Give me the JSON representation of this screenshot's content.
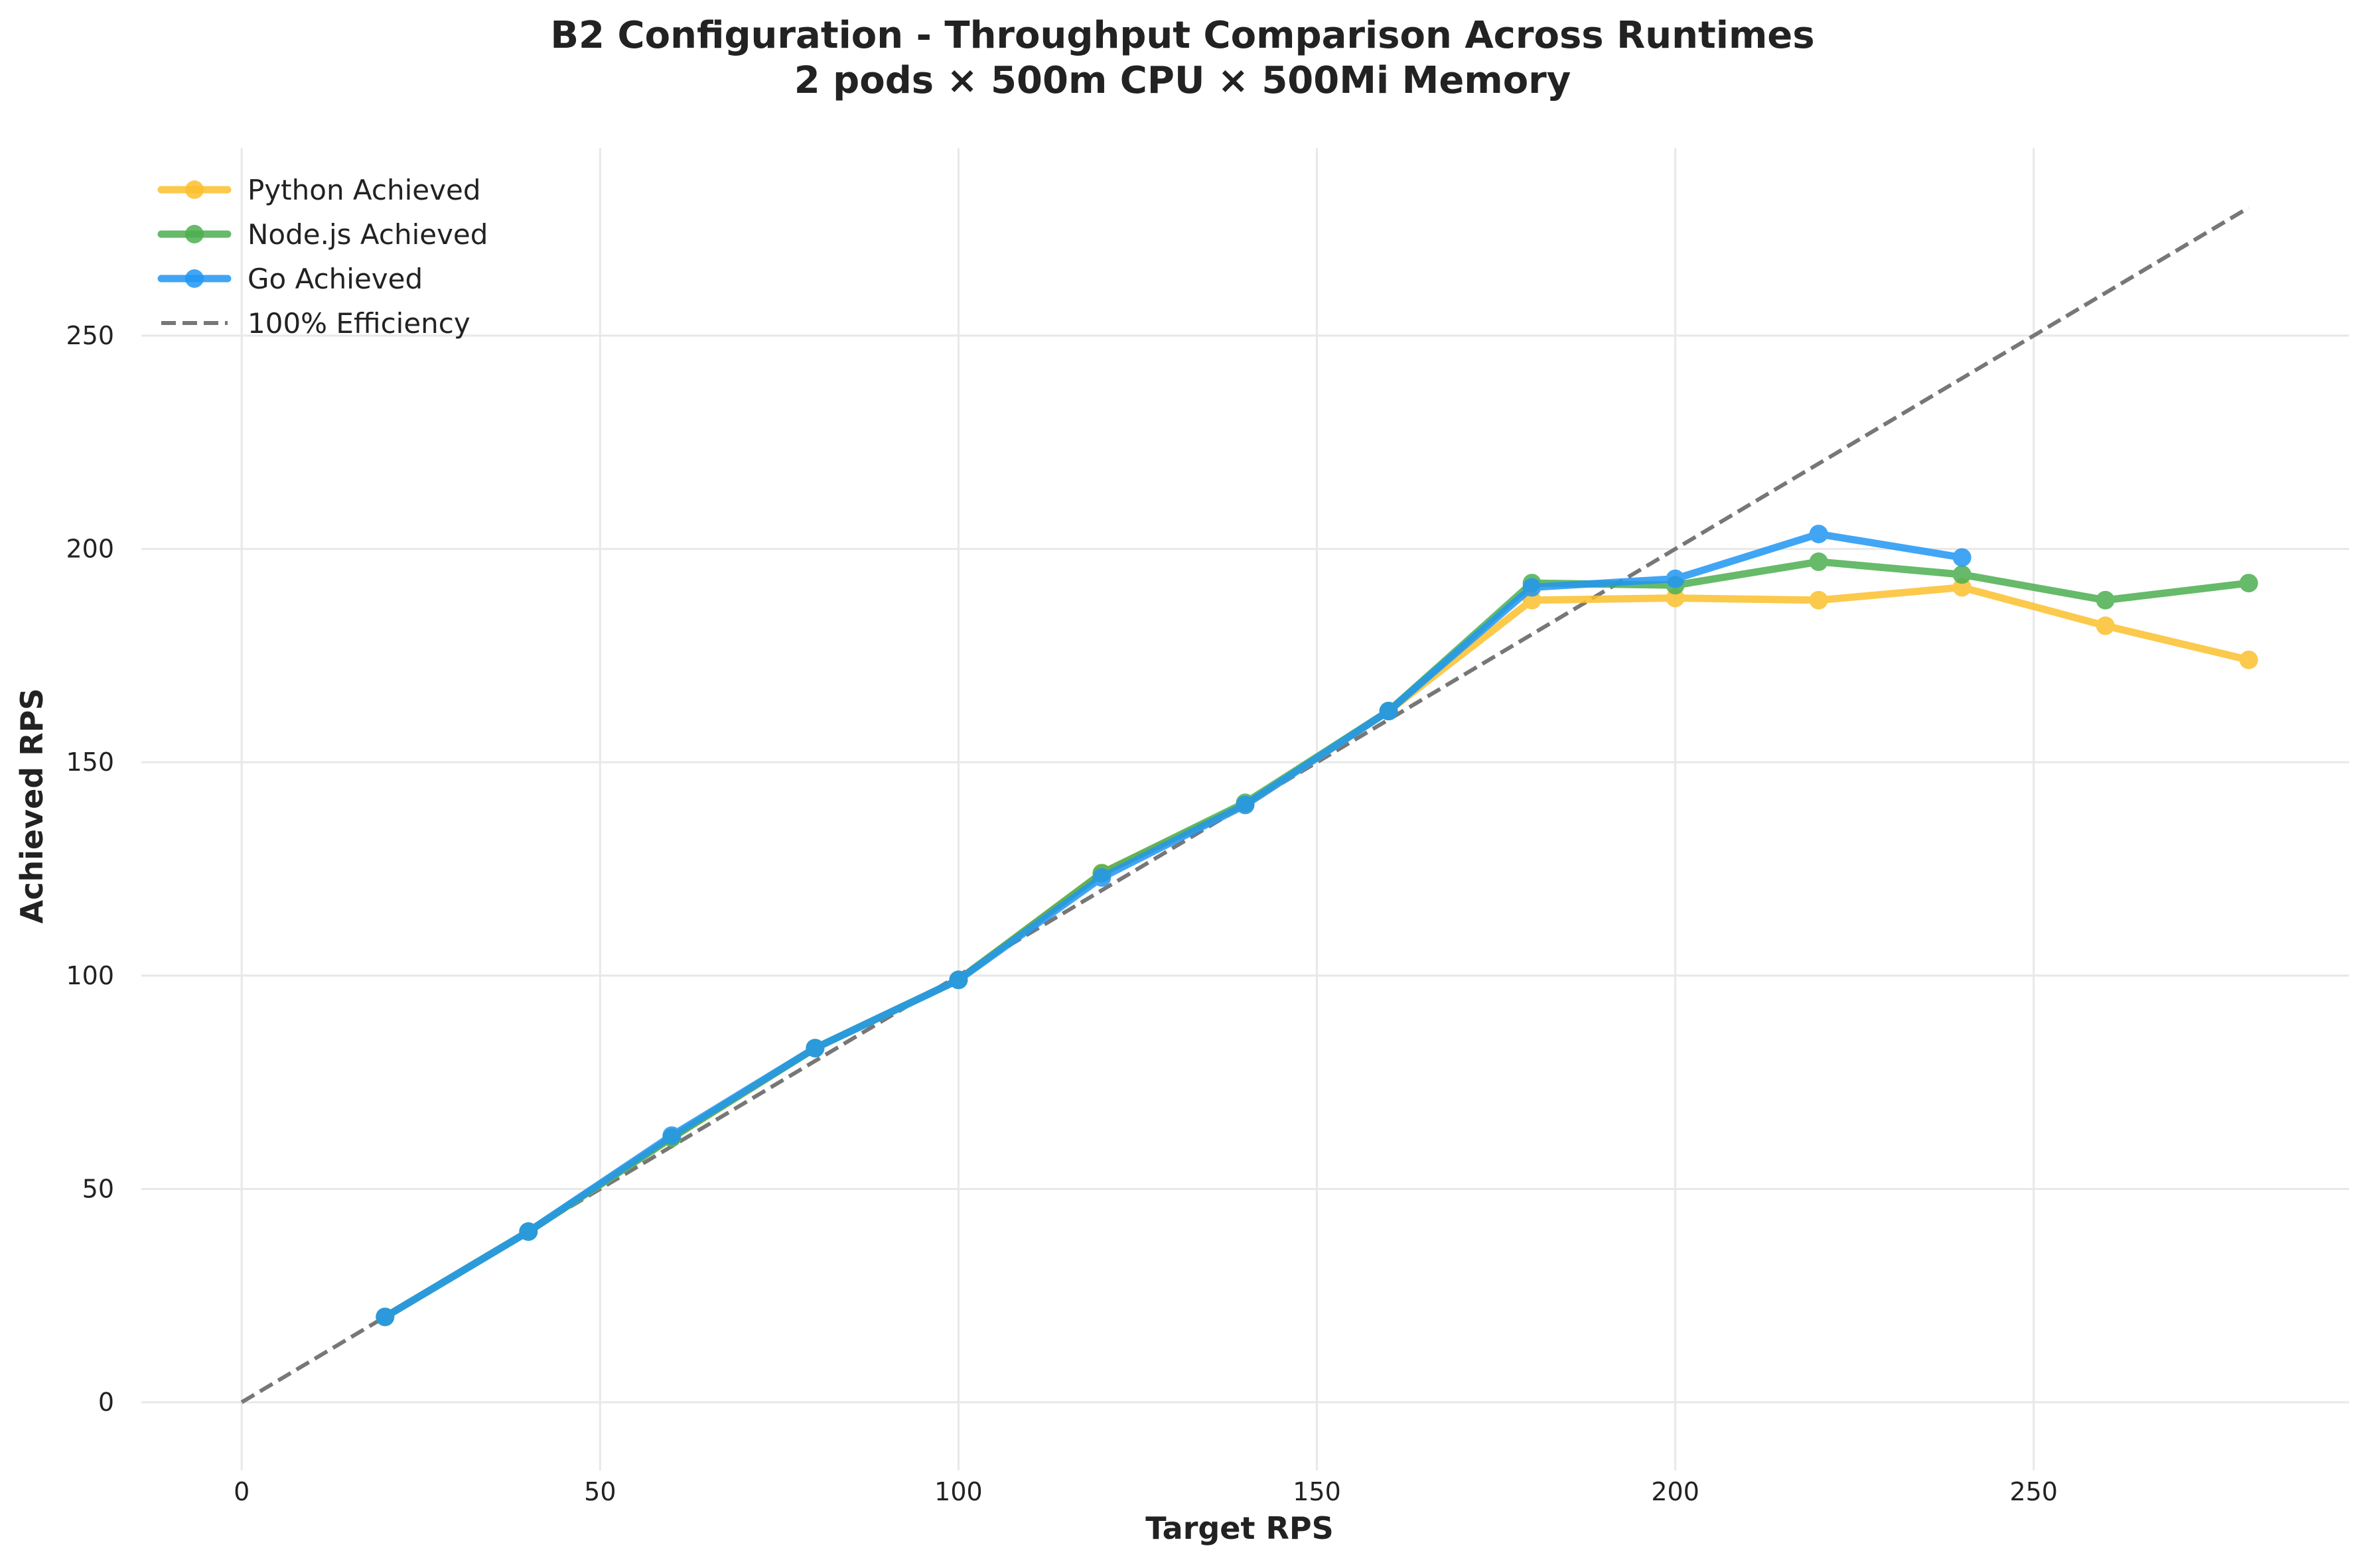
{
  "chart_data": {
    "type": "line",
    "title": "B2 Configuration - Throughput Comparison Across Runtimes",
    "subtitle": "2 pods × 500m CPU × 500Mi Memory",
    "xlabel": "Target RPS",
    "ylabel": "Achieved RPS",
    "xlim": [
      -14,
      294
    ],
    "ylim": [
      -16,
      294
    ],
    "xticks": [
      0,
      50,
      100,
      150,
      200,
      250
    ],
    "yticks": [
      0,
      50,
      100,
      150,
      200,
      250
    ],
    "grid": true,
    "legend_position": "top-left",
    "series": [
      {
        "name": "Python Achieved",
        "color": "#FBC02D",
        "x": [
          20,
          40,
          60,
          80,
          100,
          120,
          140,
          160,
          180,
          200,
          220,
          240,
          260,
          280
        ],
        "y": [
          20,
          40,
          62,
          83,
          99,
          124,
          140,
          162,
          188,
          188.5,
          188,
          191,
          182,
          174
        ]
      },
      {
        "name": "Node.js Achieved",
        "color": "#4CAF50",
        "x": [
          20,
          40,
          60,
          80,
          100,
          120,
          140,
          160,
          180,
          200,
          220,
          240,
          260,
          280
        ],
        "y": [
          20,
          40,
          62,
          83,
          99,
          124,
          140.5,
          162,
          192,
          191.5,
          197,
          194,
          188,
          192
        ]
      },
      {
        "name": "Go Achieved",
        "color": "#2196F3",
        "x": [
          20,
          40,
          60,
          80,
          100,
          120,
          140,
          160,
          180,
          200,
          220,
          240
        ],
        "y": [
          20,
          40,
          62.5,
          83,
          99,
          123,
          140,
          162,
          191,
          193,
          203.5,
          198
        ]
      }
    ],
    "reference_line": {
      "name": "100% Efficiency",
      "color": "#777777",
      "style": "dashed",
      "x": [
        0,
        280
      ],
      "y": [
        0,
        280
      ]
    }
  }
}
